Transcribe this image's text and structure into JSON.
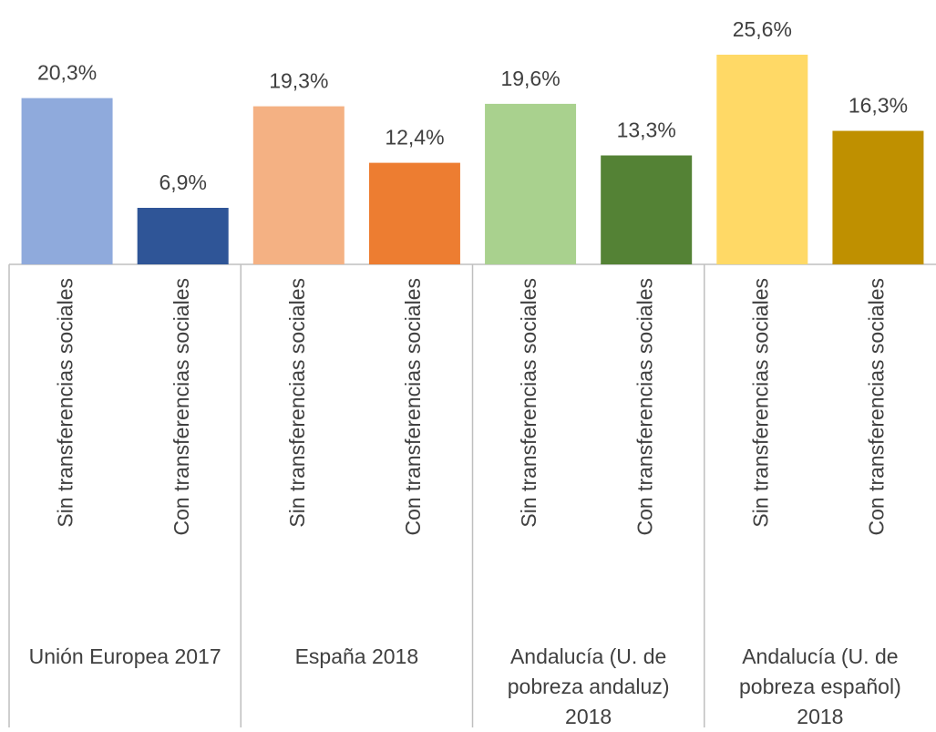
{
  "chart_data": {
    "type": "bar",
    "groups": [
      {
        "label": "Unión Europea 2017",
        "categories": [
          "Sin transferencias sociales",
          "Con transferencias sociales"
        ],
        "values": [
          20.3,
          6.9
        ],
        "value_labels": [
          "20,3%",
          "6,9%"
        ],
        "colors": [
          "#8faadc",
          "#2f5597"
        ]
      },
      {
        "label": "España 2018",
        "categories": [
          "Sin transferencias sociales",
          "Con transferencias sociales"
        ],
        "values": [
          19.3,
          12.4
        ],
        "value_labels": [
          "19,3%",
          "12,4%"
        ],
        "colors": [
          "#f4b183",
          "#ed7d31"
        ]
      },
      {
        "label": "Andalucía (U. de pobreza andaluz) 2018",
        "categories": [
          "Sin transferencias sociales",
          "Con transferencias sociales"
        ],
        "values": [
          19.6,
          13.3
        ],
        "value_labels": [
          "19,6%",
          "13,3%"
        ],
        "colors": [
          "#a9d18e",
          "#548235"
        ]
      },
      {
        "label": "Andalucía (U. de pobreza español) 2018",
        "categories": [
          "Sin transferencias sociales",
          "Con transferencias sociales"
        ],
        "values": [
          25.6,
          16.3
        ],
        "value_labels": [
          "25,6%",
          "16,3%"
        ],
        "colors": [
          "#ffd966",
          "#bf9000"
        ]
      }
    ]
  }
}
